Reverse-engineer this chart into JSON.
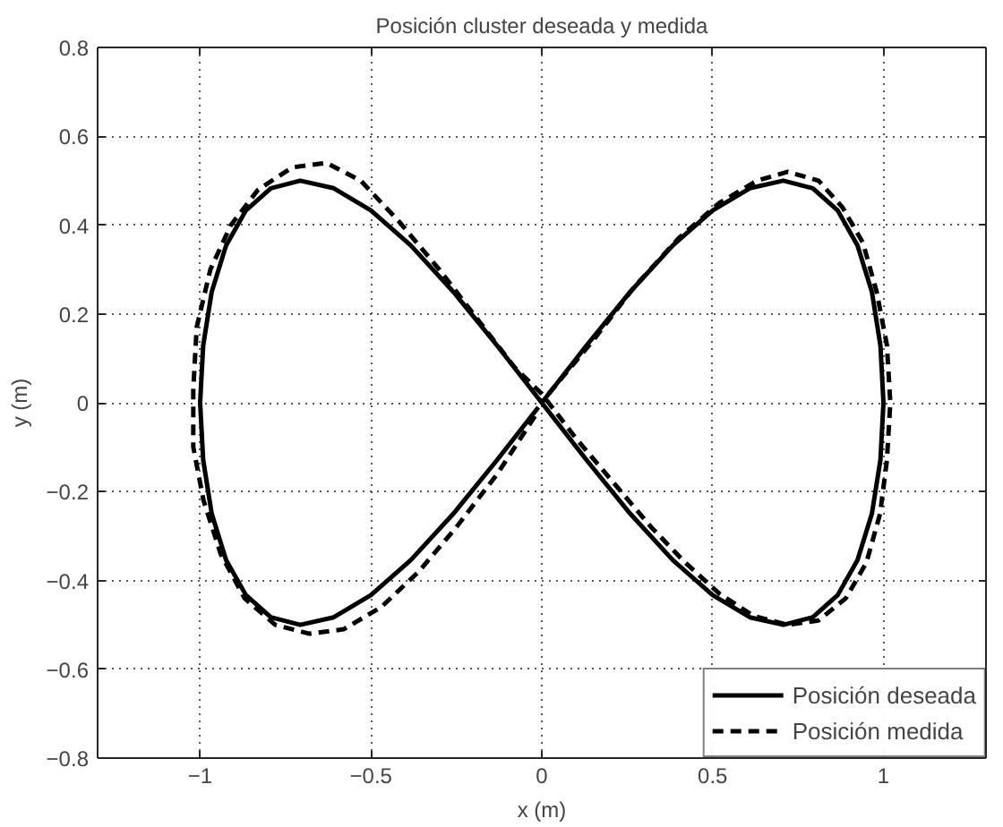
{
  "chart_data": {
    "type": "line",
    "title": "Posición cluster deseada y medida",
    "xlabel": "x (m)",
    "ylabel": "y (m)",
    "xlim": [
      -1.3,
      1.3
    ],
    "ylim": [
      -0.8,
      0.8
    ],
    "xticks": [
      {
        "value": -1,
        "label": "−1"
      },
      {
        "value": -0.5,
        "label": "−0.5"
      },
      0,
      0.5,
      1
    ],
    "yticks": [
      {
        "value": -0.8,
        "label": "−0.8"
      },
      {
        "value": -0.6,
        "label": "−0.6"
      },
      {
        "value": -0.4,
        "label": "−0.4"
      },
      {
        "value": -0.2,
        "label": "−0.2"
      },
      0,
      0.2,
      0.4,
      0.6,
      0.8
    ],
    "grid": true,
    "legend": "bottom right",
    "series": [
      {
        "name": "Posición deseada",
        "color": "#000000",
        "line_style": "solid",
        "x": [
          0,
          0.131,
          0.259,
          0.383,
          0.5,
          0.609,
          0.707,
          0.793,
          0.866,
          0.924,
          0.966,
          0.991,
          1,
          0.991,
          0.966,
          0.924,
          0.866,
          0.793,
          0.707,
          0.609,
          0.5,
          0.383,
          0.259,
          0.131,
          0,
          -0.131,
          -0.259,
          -0.383,
          -0.5,
          -0.609,
          -0.707,
          -0.793,
          -0.866,
          -0.924,
          -0.966,
          -0.991,
          -1,
          -0.991,
          -0.966,
          -0.924,
          -0.866,
          -0.793,
          -0.707,
          -0.609,
          -0.5,
          -0.383,
          -0.259,
          -0.131,
          -0.01
        ],
        "values": [
          0,
          0.129,
          0.25,
          0.354,
          0.433,
          0.483,
          0.5,
          0.483,
          0.433,
          0.354,
          0.25,
          0.129,
          0,
          -0.129,
          -0.25,
          -0.354,
          -0.433,
          -0.483,
          -0.5,
          -0.483,
          -0.433,
          -0.354,
          -0.25,
          -0.129,
          0,
          0.129,
          0.25,
          0.354,
          0.433,
          0.483,
          0.5,
          0.483,
          0.433,
          0.354,
          0.25,
          0.129,
          0,
          -0.129,
          -0.25,
          -0.354,
          -0.433,
          -0.483,
          -0.5,
          -0.483,
          -0.433,
          -0.354,
          -0.25,
          -0.129,
          -0.01
        ]
      },
      {
        "name": "Posición medida",
        "color": "#000000",
        "line_style": "dashed",
        "x": [
          0.02,
          0.15,
          0.27,
          0.4,
          0.52,
          0.63,
          0.72,
          0.81,
          0.88,
          0.94,
          0.98,
          1.01,
          1.02,
          1.01,
          0.99,
          0.95,
          0.89,
          0.81,
          0.72,
          0.62,
          0.52,
          0.42,
          0.32,
          0.21,
          0.1,
          0,
          -0.08,
          -0.18,
          -0.3,
          -0.42,
          -0.53,
          -0.63,
          -0.73,
          -0.83,
          -0.91,
          -0.97,
          -1.01,
          -1.02,
          -1.02,
          -0.99,
          -0.94,
          -0.87,
          -0.78,
          -0.68,
          -0.58,
          -0.47,
          -0.36,
          -0.25,
          -0.13,
          -0.02
        ],
        "values": [
          0.02,
          0.14,
          0.26,
          0.37,
          0.45,
          0.5,
          0.52,
          0.5,
          0.44,
          0.36,
          0.25,
          0.13,
          0,
          -0.13,
          -0.25,
          -0.36,
          -0.44,
          -0.49,
          -0.5,
          -0.48,
          -0.43,
          -0.36,
          -0.28,
          -0.18,
          -0.08,
          0.02,
          0.08,
          0.18,
          0.3,
          0.41,
          0.5,
          0.54,
          0.53,
          0.48,
          0.4,
          0.3,
          0.17,
          0.03,
          -0.1,
          -0.22,
          -0.34,
          -0.44,
          -0.5,
          -0.52,
          -0.51,
          -0.46,
          -0.38,
          -0.28,
          -0.16,
          -0.03
        ]
      }
    ]
  }
}
